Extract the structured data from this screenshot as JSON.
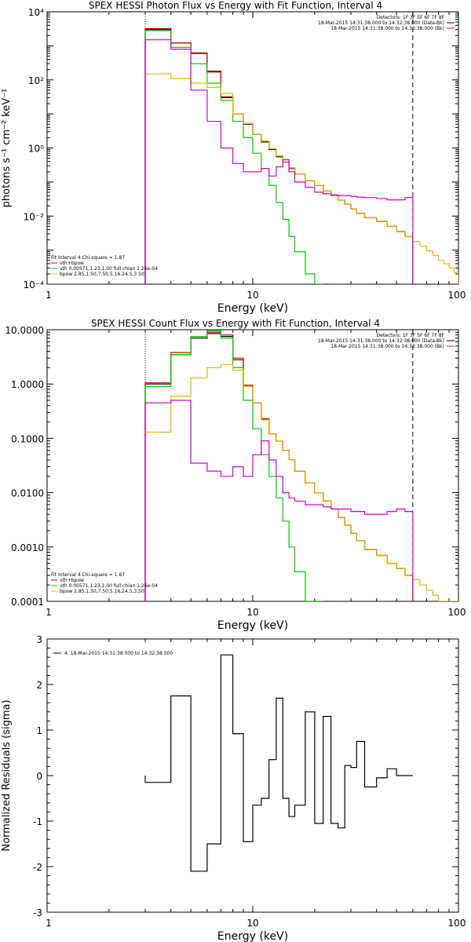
{
  "colors": {
    "data": "#000000",
    "model_total": "#cc0000",
    "vth": "#00cc00",
    "bpow": "#e6b800",
    "background": "#cc00cc",
    "frame": "#000000"
  },
  "chart_data": [
    {
      "type": "line",
      "title": "SPEX HESSI Photon Flux vs Energy with Fit Function, Interval 4",
      "xlabel": "Energy (keV)",
      "ylabel": "photons s⁻¹ cm⁻² keV⁻¹",
      "xscale": "log",
      "yscale": "log",
      "xlim": [
        1,
        100
      ],
      "ylim": [
        0.0001,
        10000
      ],
      "xticks": [
        "1",
        "10",
        "100"
      ],
      "yticks": [
        "10⁻⁴",
        "10⁻²",
        "10⁰",
        "10²",
        "10⁴"
      ],
      "legend_top": [
        "Detectors: 1F 3F 5F 6F 7F 8F",
        "18-Mar-2015 14:31:38.000 to 14:32:38.000 (Data-Bk)",
        "18-Mar-2015 14:31:38.000 to 14:32:38.000 (Bk)"
      ],
      "legend_bottom": [
        "Fit Interval 4   Chi-square = 1.87",
        "vth+bpow",
        "vth 0.00571,1.23,1.00  full chian 1.26e-04",
        "bpow 2.85,1.50,7.50,5.16,24.5,3.50"
      ],
      "vlines": [
        3.0,
        60.0
      ],
      "edges": [
        3.0,
        4.0,
        5.0,
        6.0,
        7.0,
        8.0,
        9.0,
        10.0,
        11.0,
        12.0,
        13.0,
        14.0,
        15.0,
        16.0,
        18.0,
        20.0,
        22.0,
        24.0,
        26.0,
        28.0,
        30.0,
        32.0,
        35.0,
        40.0,
        45.0,
        50.0,
        55.0,
        60.0,
        65.0,
        70.0,
        75.0,
        80.0,
        85.0,
        90.0,
        95.0,
        100.0
      ],
      "series": [
        {
          "role": "data",
          "values": [
            3000,
            1200,
            600,
            180,
            30,
            10,
            5,
            2.5,
            1.5,
            0.9,
            0.55,
            0.38,
            0.25,
            0.17,
            0.11,
            0.08,
            0.055,
            0.04,
            0.03,
            0.022,
            0.016,
            0.012,
            0.009,
            0.007,
            0.005,
            0.0035,
            0.0025
          ]
        },
        {
          "role": "model_total",
          "values": [
            3200,
            1200,
            620,
            170,
            32,
            10,
            5.2,
            2.5,
            1.6,
            0.95,
            0.58,
            0.39,
            0.26,
            0.17,
            0.11,
            0.08,
            0.055,
            0.04,
            0.03,
            0.022,
            0.016,
            0.012,
            0.009,
            0.007,
            0.005,
            0.0035,
            0.0025
          ]
        },
        {
          "role": "vth",
          "values": [
            2800,
            900,
            300,
            80,
            25,
            6,
            2,
            0.7,
            0.25,
            0.08,
            0.025,
            0.008,
            0.0025,
            0.0009,
            0.0002,
            8e-05
          ]
        },
        {
          "role": "bpow",
          "values": [
            150,
            110,
            80,
            60,
            40,
            10,
            5.2,
            2.5,
            1.6,
            0.95,
            0.58,
            0.39,
            0.26,
            0.17,
            0.11,
            0.08,
            0.055,
            0.04,
            0.03,
            0.022,
            0.016,
            0.012,
            0.009,
            0.007,
            0.005,
            0.0035,
            0.0025,
            0.0018,
            0.0013,
            0.00095,
            0.0007,
            0.0005,
            0.0004,
            0.0003,
            0.00022
          ]
        },
        {
          "role": "background",
          "values": [
            1500,
            800,
            50,
            6,
            1,
            0.35,
            0.2,
            0.2,
            0.25,
            0.15,
            0.28,
            0.45,
            0.2,
            0.1,
            0.07,
            0.05,
            0.045,
            0.042,
            0.04,
            0.04,
            0.038,
            0.036,
            0.035,
            0.033,
            0.03,
            0.03,
            0.035
          ]
        }
      ]
    },
    {
      "type": "line",
      "title": "SPEX HESSI Count Flux vs Energy with Fit Function, Interval 4",
      "xlabel": "Energy (keV)",
      "ylabel": "",
      "xscale": "log",
      "yscale": "log",
      "xlim": [
        1,
        100
      ],
      "ylim": [
        0.0001,
        10
      ],
      "xticks": [
        "1",
        "10",
        "100"
      ],
      "yticks": [
        "0.0001",
        "0.0010",
        "0.0100",
        "0.1000",
        "1.0000",
        "10.0000"
      ],
      "legend_top": [
        "Detectors: 1F 3F 5F 6F 7F 8F",
        "18-Mar-2015 14:31:38.000 to 14:32:38.000 (Data-Bk)",
        "18-Mar-2015 14:31:38.000 to 14:32:38.000 (Bk)"
      ],
      "legend_bottom": [
        "Fit Interval 4   Chi-square = 1.87",
        "vth+bpow",
        "vth 0.00571,1.23,1.00  full chian 1.26e-04",
        "bpow 2.85,1.50,7.50,5.16,24.5,3.50"
      ],
      "vlines": [
        3.0,
        60.0
      ],
      "edges": [
        3.0,
        4.0,
        5.0,
        6.0,
        7.0,
        8.0,
        9.0,
        10.0,
        11.0,
        12.0,
        13.0,
        14.0,
        15.0,
        16.0,
        18.0,
        20.0,
        22.0,
        24.0,
        26.0,
        28.0,
        30.0,
        32.0,
        35.0,
        40.0,
        45.0,
        50.0,
        55.0,
        60.0,
        65.0,
        70.0,
        75.0,
        80.0,
        85.0,
        90.0,
        95.0,
        100.0
      ],
      "series": [
        {
          "role": "data",
          "values": [
            1.0,
            3.5,
            7.0,
            8.5,
            7.5,
            2.8,
            0.9,
            0.45,
            0.22,
            0.12,
            0.09,
            0.06,
            0.04,
            0.025,
            0.015,
            0.01,
            0.007,
            0.005,
            0.0035,
            0.0025,
            0.0018,
            0.0013,
            0.0009,
            0.0007,
            0.0005,
            0.0004,
            0.0003
          ]
        },
        {
          "role": "model_total",
          "values": [
            1.05,
            3.8,
            7.5,
            9.0,
            8.0,
            3.0,
            0.95,
            0.45,
            0.23,
            0.12,
            0.09,
            0.06,
            0.04,
            0.025,
            0.015,
            0.01,
            0.007,
            0.005,
            0.0035,
            0.0025,
            0.0018,
            0.0013,
            0.0009,
            0.0007,
            0.0005,
            0.0004,
            0.0003
          ]
        },
        {
          "role": "vth",
          "values": [
            0.9,
            3.5,
            7.5,
            9.5,
            7.0,
            2.0,
            0.5,
            0.15,
            0.05,
            0.02,
            0.008,
            0.003,
            0.001,
            0.00035,
            0.0001,
            3e-05
          ]
        },
        {
          "role": "bpow",
          "values": [
            0.13,
            0.6,
            1.3,
            2.0,
            2.3,
            1.8,
            0.9,
            0.45,
            0.22,
            0.12,
            0.09,
            0.06,
            0.04,
            0.025,
            0.015,
            0.01,
            0.007,
            0.005,
            0.0035,
            0.0025,
            0.0018,
            0.0013,
            0.0009,
            0.0007,
            0.0005,
            0.0004,
            0.0003,
            0.00025,
            0.0002,
            0.00016,
            0.00013,
            0.0001,
            8e-05,
            7e-05,
            6e-05
          ]
        },
        {
          "role": "background",
          "values": [
            0.45,
            0.5,
            0.035,
            0.025,
            0.02,
            0.03,
            0.02,
            0.05,
            0.09,
            0.04,
            0.02,
            0.01,
            0.008,
            0.007,
            0.006,
            0.006,
            0.0055,
            0.005,
            0.005,
            0.005,
            0.0045,
            0.0045,
            0.004,
            0.004,
            0.0045,
            0.005,
            0.0045
          ]
        }
      ]
    },
    {
      "type": "line",
      "title": "",
      "xlabel": "Energy (keV)",
      "ylabel": "Normalized Residuals (sigma)",
      "xscale": "log",
      "yscale": "linear",
      "xlim": [
        1,
        100
      ],
      "ylim": [
        -3,
        3
      ],
      "xticks": [
        "1",
        "10",
        "100"
      ],
      "yticks": [
        "-3",
        "-2",
        "-1",
        "0",
        "1",
        "2",
        "3"
      ],
      "legend": [
        "4. 18-Mar-2015 14:31:38.000 to 14:32:38.000"
      ],
      "edges": [
        3.0,
        4.0,
        5.0,
        6.0,
        7.0,
        8.0,
        9.0,
        10.0,
        11.0,
        12.0,
        13.0,
        14.0,
        15.0,
        16.0,
        18.0,
        20.0,
        22.0,
        24.0,
        26.0,
        28.0,
        30.0,
        32.0,
        35.0,
        40.0,
        45.0,
        50.0,
        55.0,
        60.0
      ],
      "series": [
        {
          "role": "data",
          "values": [
            -0.15,
            1.75,
            -2.1,
            -1.5,
            2.65,
            0.92,
            -1.45,
            -0.65,
            -0.5,
            0.35,
            1.7,
            -0.5,
            -0.9,
            -0.65,
            1.4,
            -1.05,
            1.3,
            -1.05,
            -1.15,
            0.22,
            0.18,
            0.75,
            -0.25,
            -0.05,
            0.15,
            0.0,
            0.0
          ]
        }
      ]
    }
  ]
}
